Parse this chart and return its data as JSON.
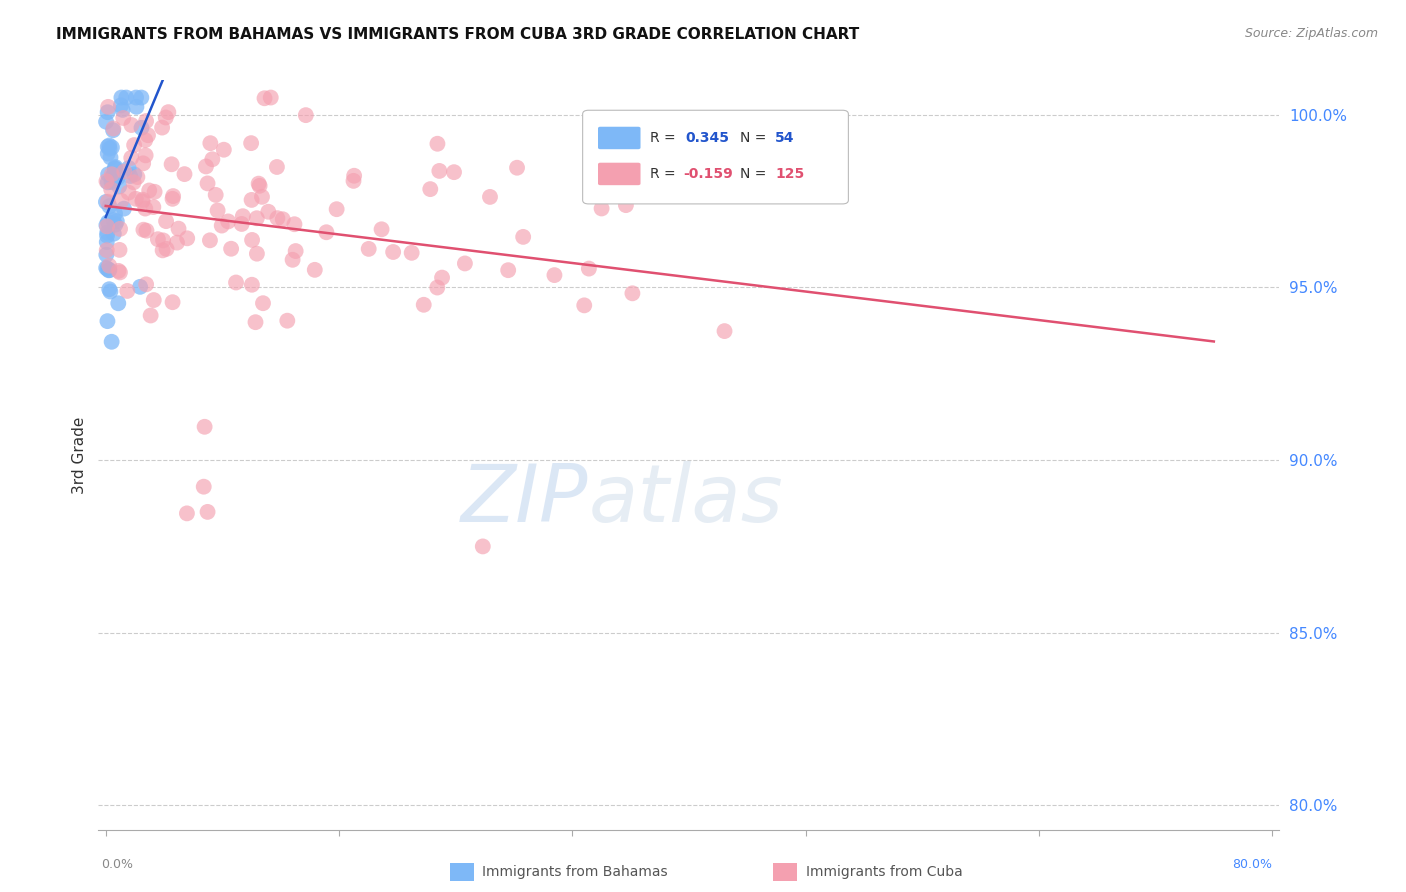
{
  "title": "IMMIGRANTS FROM BAHAMAS VS IMMIGRANTS FROM CUBA 3RD GRADE CORRELATION CHART",
  "source": "Source: ZipAtlas.com",
  "ylabel": "3rd Grade",
  "legend_r_bahamas": "0.345",
  "legend_n_bahamas": "54",
  "legend_r_cuba": "-0.159",
  "legend_n_cuba": "125",
  "color_bahamas": "#7EB8F7",
  "color_cuba": "#F4A0B0",
  "color_trendline_bahamas": "#2255CC",
  "color_trendline_cuba": "#E05070",
  "watermark_zip": "ZIP",
  "watermark_atlas": "atlas",
  "background_color": "#FFFFFF",
  "grid_color": "#CCCCCC",
  "right_axis_color": "#4488FF",
  "title_color": "#111111",
  "source_color": "#888888",
  "ylabel_color": "#333333",
  "legend_label_color": "#333333",
  "bottom_legend_color": "#555555"
}
